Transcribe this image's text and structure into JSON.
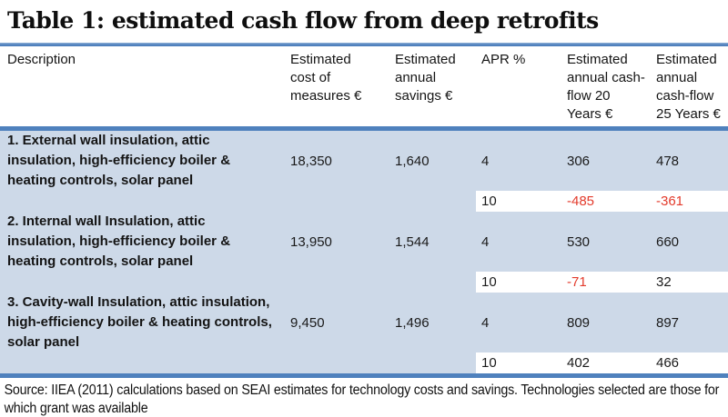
{
  "title": "Table 1: estimated cash flow from deep retrofits",
  "table": {
    "columns": [
      "Description",
      "Estimated cost of measures €",
      "Estimated annual savings €",
      "APR %",
      "Estimated annual cash-flow 20 Years €",
      "Estimated annual cash-flow 25 Years €"
    ],
    "rows": [
      {
        "description": "1. External wall insulation, attic insulation, high-efficiency boiler & heating controls, solar panel",
        "cost": "18,350",
        "savings": "1,640",
        "apr_main": "4",
        "cashflow20_main": "306",
        "cashflow25_main": "478",
        "apr_alt": "10",
        "cashflow20_alt": "-485",
        "cashflow25_alt": "-361"
      },
      {
        "description": "2. Internal wall Insulation, attic insulation, high-efficiency boiler & heating controls, solar panel",
        "cost": "13,950",
        "savings": "1,544",
        "apr_main": "4",
        "cashflow20_main": "530",
        "cashflow25_main": "660",
        "apr_alt": "10",
        "cashflow20_alt": "-71",
        "cashflow25_alt": "32"
      },
      {
        "description": "3. Cavity-wall Insulation, attic insulation, high-efficiency boiler & heating controls, solar panel",
        "cost": "9,450",
        "savings": "1,496",
        "apr_main": "4",
        "cashflow20_main": "809",
        "cashflow25_main": "897",
        "apr_alt": "10",
        "cashflow20_alt": "402",
        "cashflow25_alt": "466"
      }
    ]
  },
  "source_note": "Source: IIEA (2011) calculations based on SEAI estimates for technology costs and savings. Technologies selected are those for which grant was available",
  "colors": {
    "accent_bar": "#4f81bd",
    "row_background": "#cdd9e8",
    "negative_number": "#e33b2c"
  }
}
